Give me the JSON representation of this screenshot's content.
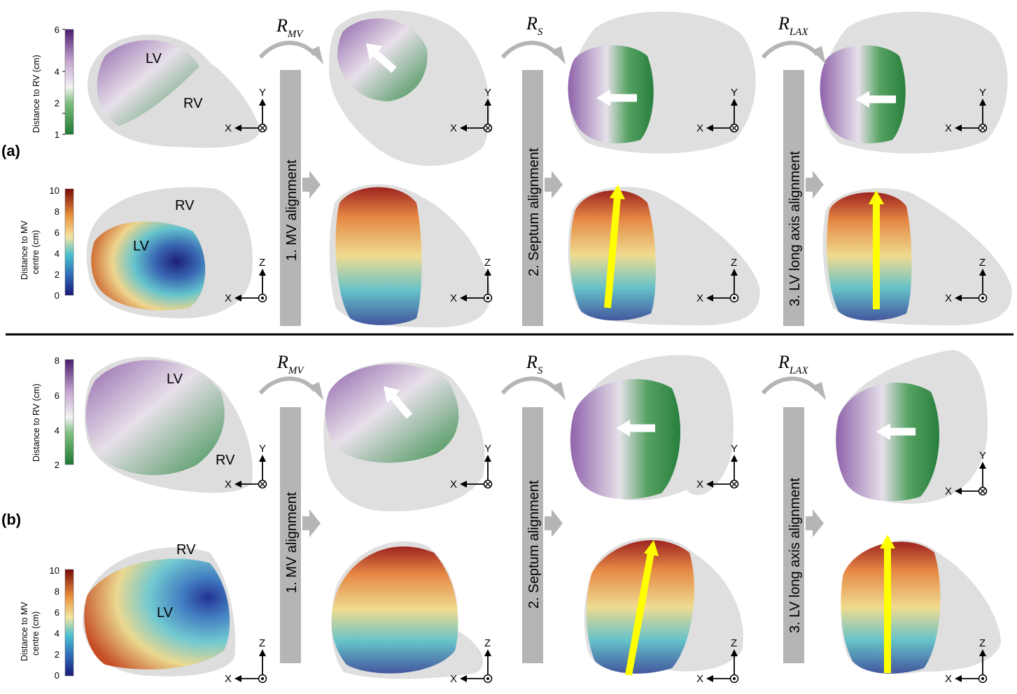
{
  "panels": [
    {
      "label": "(a)",
      "colorbar_rv": {
        "title": "Distance to RV (cm)",
        "ticks": [
          "1",
          "2",
          "4",
          "6"
        ]
      },
      "colorbar_mv": {
        "title_line1": "Distance to MV",
        "title_line2": "centre (cm)",
        "ticks": [
          "0",
          "2",
          "4",
          "6",
          "8",
          "10"
        ]
      },
      "mesh_labels": {
        "lv": "LV",
        "rv": "RV"
      }
    },
    {
      "label": "(b)",
      "colorbar_rv": {
        "title": "Distance to RV (cm)",
        "ticks": [
          "2",
          "4",
          "6",
          "8"
        ]
      },
      "colorbar_mv": {
        "title_line1": "Distance to MV",
        "title_line2": "centre (cm)",
        "ticks": [
          "0",
          "2",
          "4",
          "6",
          "8",
          "10"
        ]
      },
      "mesh_labels": {
        "lv": "LV",
        "rv": "RV"
      }
    }
  ],
  "steps": [
    {
      "text": "1. MV alignment",
      "rotation": "R",
      "rotation_sub": "MV"
    },
    {
      "text": "2. Septum alignment",
      "rotation": "R",
      "rotation_sub": "S"
    },
    {
      "text": "3. LV long axis alignment",
      "rotation": "R",
      "rotation_sub": "LAX"
    }
  ],
  "axes": {
    "x": "X",
    "y": "Y",
    "z": "Z"
  },
  "colors": {
    "mesh_gray": "#d4d4d4",
    "arrow_gray": "#b5b5b5",
    "rv_low": "#1e7a34",
    "rv_mid": "#f2f2f2",
    "rv_high": "#4b1b6e",
    "mv_low": "#1a1a7a",
    "mv_high": "#7a0a0a",
    "yellow_arrow": "#ffff00",
    "white_arrow": "#ffffff"
  }
}
